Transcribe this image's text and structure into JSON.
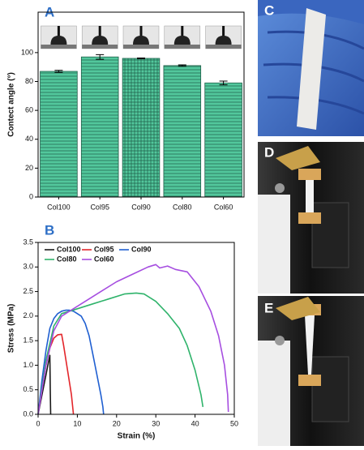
{
  "chart_data": [
    {
      "type": "bar",
      "panel_label": "A",
      "y_label": "Contect angle (°)",
      "categories": [
        "Col100",
        "Col95",
        "Col90",
        "Col80",
        "Col60"
      ],
      "values": [
        87,
        97,
        96,
        91,
        79
      ],
      "errors": [
        0.7,
        1.6,
        0.3,
        0.5,
        1.3
      ],
      "color": "#52c79c",
      "ylim": [
        0,
        128
      ],
      "yticks": [
        0,
        20,
        40,
        60,
        80,
        100
      ]
    },
    {
      "type": "line",
      "panel_label": "B",
      "x_label": "Strain (%)",
      "y_label": "Stress (MPa)",
      "xlim": [
        0,
        50
      ],
      "xticks": [
        0,
        10,
        20,
        30,
        40,
        50
      ],
      "ylim": [
        0,
        3.5
      ],
      "yticks": [
        {
          "value": 0,
          "label": "0.0"
        },
        0.5,
        {
          "value": 1,
          "label": "1.0"
        },
        1.5,
        {
          "value": 2,
          "label": "2.0"
        },
        2.5,
        {
          "value": 3,
          "label": "3.0"
        },
        3.5
      ],
      "series": [
        {
          "name": "Col100",
          "color": "#1a1a1a",
          "x": [
            0,
            1,
            2,
            2.6,
            3.0,
            3.1,
            3.2
          ],
          "values": [
            0,
            0.4,
            0.8,
            1.05,
            1.2,
            0.5,
            0
          ]
        },
        {
          "name": "Col95",
          "color": "#e3262b",
          "x": [
            0,
            1,
            2,
            3,
            4,
            5,
            6,
            6.5,
            7.5,
            8.5,
            9
          ],
          "values": [
            0,
            0.5,
            1.0,
            1.35,
            1.55,
            1.62,
            1.63,
            1.4,
            0.9,
            0.4,
            0
          ]
        },
        {
          "name": "Col90",
          "color": "#1f5fd1",
          "x": [
            0,
            1,
            2,
            3,
            4,
            5,
            6,
            7,
            8,
            9,
            10,
            11,
            12,
            13,
            14,
            15,
            16,
            16.5,
            16.7
          ],
          "values": [
            0,
            0.7,
            1.3,
            1.75,
            1.95,
            2.05,
            2.1,
            2.12,
            2.12,
            2.1,
            2.05,
            2.0,
            1.85,
            1.6,
            1.2,
            0.8,
            0.4,
            0.15,
            0
          ]
        },
        {
          "name": "Col80",
          "color": "#2fb36b",
          "x": [
            0,
            2,
            4,
            6,
            8,
            10,
            14,
            18,
            22,
            25,
            27,
            30,
            33,
            36,
            38,
            40,
            41.5,
            42
          ],
          "values": [
            0,
            1.1,
            1.8,
            2.05,
            2.1,
            2.15,
            2.25,
            2.35,
            2.45,
            2.47,
            2.45,
            2.3,
            2.05,
            1.75,
            1.4,
            0.9,
            0.4,
            0.15
          ]
        },
        {
          "name": "Col60",
          "color": "#a64ee0",
          "x": [
            0,
            2,
            4,
            6,
            8,
            12,
            16,
            20,
            24,
            28,
            30,
            31,
            33,
            35,
            38,
            41,
            44,
            46,
            47.5,
            48.3,
            48.5
          ],
          "values": [
            0,
            1.0,
            1.7,
            2.0,
            2.1,
            2.3,
            2.5,
            2.7,
            2.85,
            3.0,
            3.05,
            2.98,
            3.02,
            2.95,
            2.9,
            2.6,
            2.1,
            1.6,
            1.0,
            0.4,
            0.05
          ]
        }
      ]
    }
  ],
  "panels": [
    "C",
    "D",
    "E"
  ]
}
